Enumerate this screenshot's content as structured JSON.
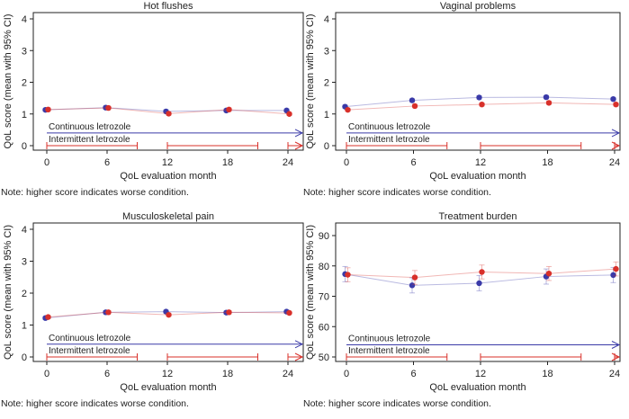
{
  "chart_data": [
    {
      "type": "line",
      "title": "Hot flushes",
      "xlabel": "QoL evaluation month",
      "ylabel": "QoL score (mean with 95% CI)",
      "x": [
        0,
        6,
        12,
        18,
        24
      ],
      "ylim": [
        0,
        4
      ],
      "yticks": [
        0,
        1,
        2,
        3,
        4
      ],
      "series": [
        {
          "name": "Continuous letrozole",
          "color": "#3a3aa8",
          "values": [
            1.13,
            1.2,
            1.08,
            1.11,
            1.11
          ]
        },
        {
          "name": "Intermittent letrozole",
          "color": "#d8302a",
          "values": [
            1.14,
            1.19,
            1.01,
            1.14,
            1.0
          ]
        }
      ],
      "note": "Note: higher score indicates worse condition."
    },
    {
      "type": "line",
      "title": "Vaginal problems",
      "xlabel": "QoL evaluation month",
      "ylabel": "QoL score (mean with 95% CI)",
      "x": [
        0,
        6,
        12,
        18,
        24
      ],
      "ylim": [
        0,
        4
      ],
      "yticks": [
        0,
        1,
        2,
        3,
        4
      ],
      "series": [
        {
          "name": "Continuous letrozole",
          "color": "#3a3aa8",
          "values": [
            1.23,
            1.43,
            1.52,
            1.53,
            1.47
          ]
        },
        {
          "name": "Intermittent letrozole",
          "color": "#d8302a",
          "values": [
            1.13,
            1.25,
            1.3,
            1.35,
            1.3
          ]
        }
      ],
      "note": "Note: higher score indicates worse condition."
    },
    {
      "type": "line",
      "title": "Musculoskeletal pain",
      "xlabel": "QoL evaluation month",
      "ylabel": "QoL score (mean with 95% CI)",
      "x": [
        0,
        6,
        12,
        18,
        24
      ],
      "ylim": [
        0,
        4
      ],
      "yticks": [
        0,
        1,
        2,
        3,
        4
      ],
      "series": [
        {
          "name": "Continuous letrozole",
          "color": "#3a3aa8",
          "values": [
            1.22,
            1.4,
            1.42,
            1.39,
            1.42
          ]
        },
        {
          "name": "Intermittent letrozole",
          "color": "#d8302a",
          "values": [
            1.25,
            1.4,
            1.32,
            1.4,
            1.38
          ]
        }
      ],
      "note": "Note: higher score indicates worse condition."
    },
    {
      "type": "line",
      "title": "Treatment burden",
      "xlabel": "QoL evaluation month",
      "ylabel": "QoL score (mean with 95% CI)",
      "x": [
        0,
        6,
        12,
        18,
        24
      ],
      "ylim": [
        50,
        90
      ],
      "yticks": [
        50,
        60,
        70,
        80,
        90
      ],
      "series": [
        {
          "name": "Continuous letrozole",
          "color": "#3a3aa8",
          "values": [
            77.3,
            73.6,
            74.3,
            76.5,
            77.0
          ],
          "ci": 2.5
        },
        {
          "name": "Intermittent letrozole",
          "color": "#d8302a",
          "values": [
            77.1,
            76.2,
            78.0,
            77.5,
            79.0
          ],
          "ci": 2.3
        }
      ],
      "note": "Note: higher score indicates worse condition."
    }
  ],
  "intermittent_periods": [
    [
      0,
      9
    ],
    [
      12,
      21
    ],
    [
      24,
      25
    ]
  ]
}
